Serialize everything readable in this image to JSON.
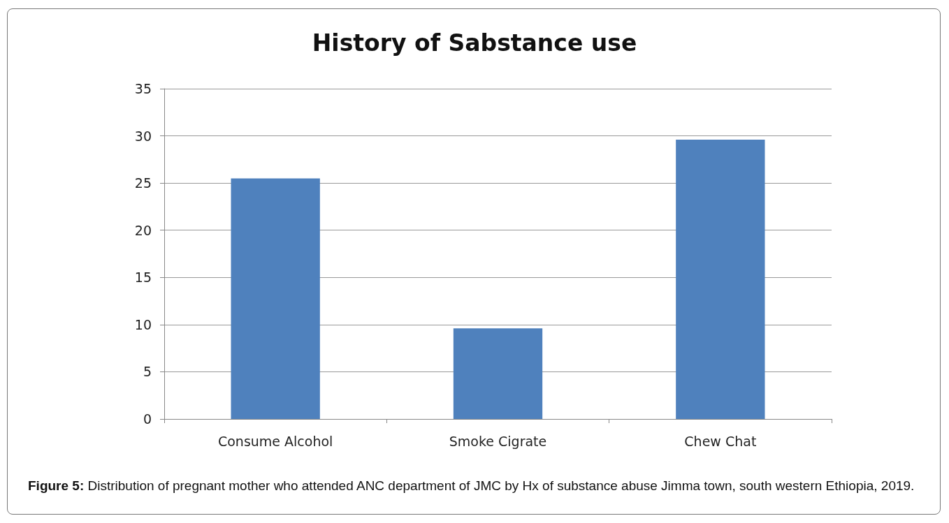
{
  "chart_data": {
    "type": "bar",
    "title": "History of Sabstance use",
    "categories": [
      "Consume Alcohol",
      "Smoke Cigrate",
      "Chew Chat"
    ],
    "values": [
      25.5,
      9.6,
      29.6
    ],
    "color": "#4f81bd",
    "ylim": [
      0,
      35
    ],
    "yticks": [
      0,
      5,
      10,
      15,
      20,
      25,
      30,
      35
    ],
    "grid": "y",
    "annotations": [
      "Figure 5: Distribution of pregnant mother who attended ANC department of JMC by Hx of substance abuse Jimma town, south western Ethiopia, 2019."
    ]
  }
}
